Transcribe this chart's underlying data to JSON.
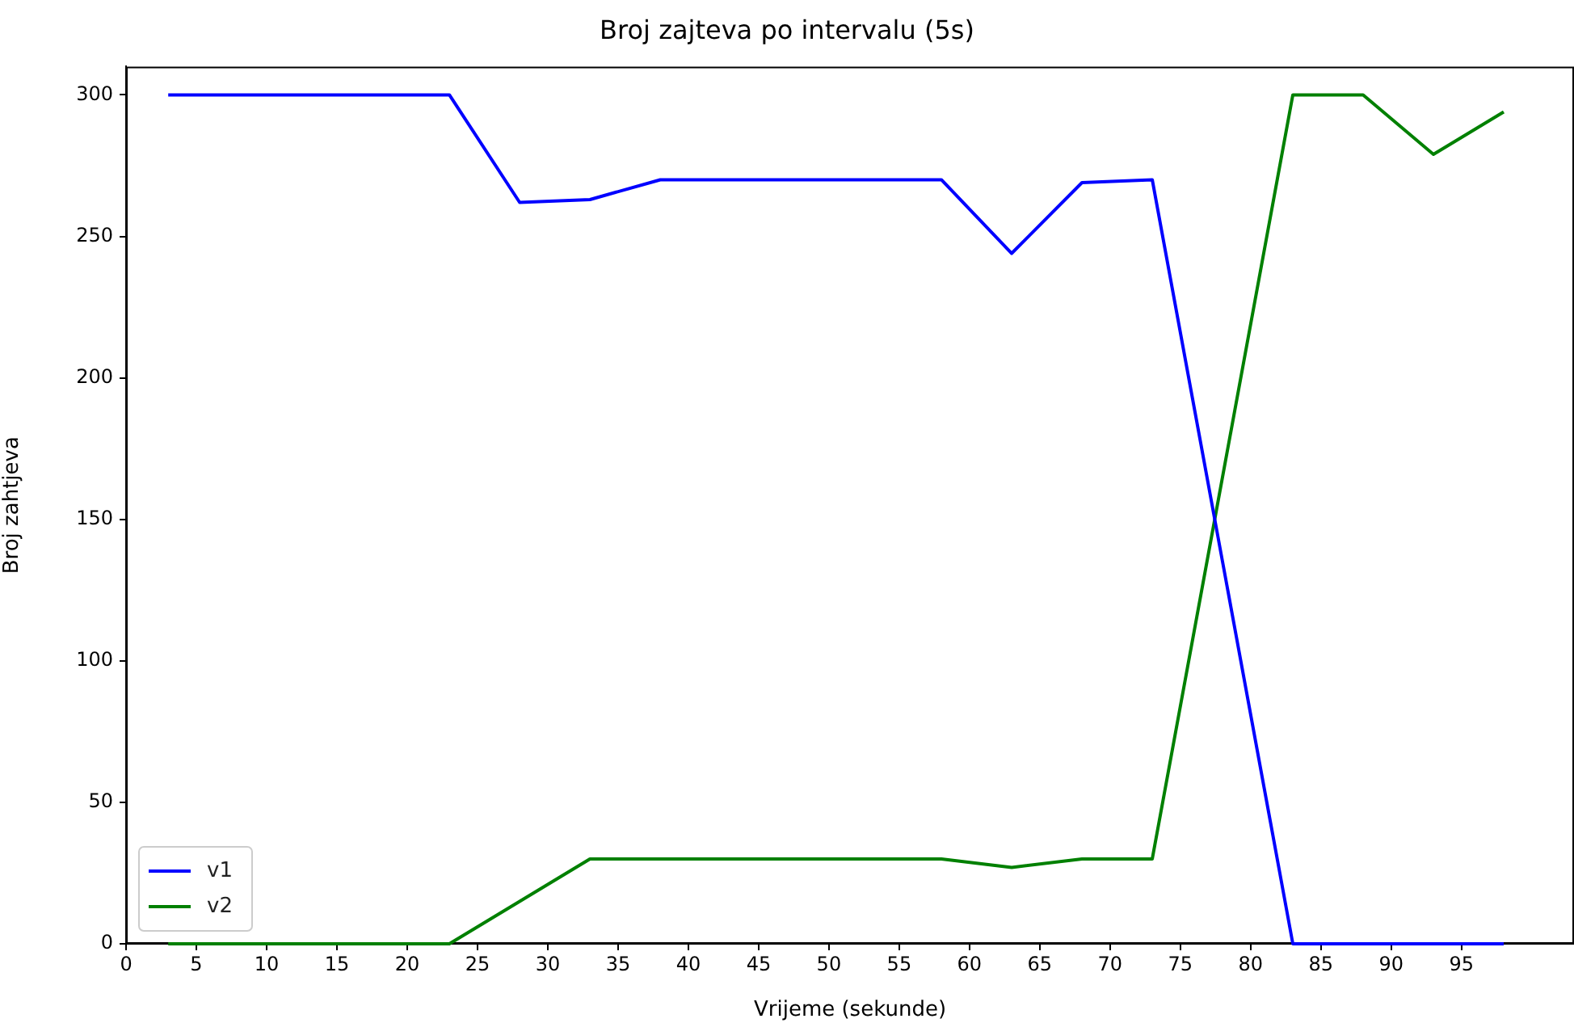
{
  "chart_data": {
    "type": "line",
    "title": "Broj zajteva po intervalu (5s)",
    "xlabel": "Vrijeme (sekunde)",
    "ylabel": "Broj zahtjeva",
    "x": [
      3,
      8,
      13,
      18,
      23,
      28,
      33,
      38,
      43,
      48,
      53,
      58,
      63,
      68,
      73,
      78,
      83,
      88,
      93,
      98
    ],
    "series": [
      {
        "name": "v1",
        "color": "#0000ff",
        "values": [
          300,
          300,
          300,
          300,
          300,
          262,
          263,
          270,
          270,
          270,
          270,
          270,
          244,
          269,
          270,
          135,
          0,
          0,
          0,
          0
        ]
      },
      {
        "name": "v2",
        "color": "#008000",
        "values": [
          0,
          0,
          0,
          0,
          0,
          15,
          30,
          30,
          30,
          30,
          30,
          30,
          27,
          30,
          30,
          165,
          300,
          300,
          279,
          294
        ]
      }
    ],
    "xlim": [
      0,
      103
    ],
    "xticks": [
      0,
      5,
      10,
      15,
      20,
      25,
      30,
      35,
      40,
      45,
      50,
      55,
      60,
      65,
      70,
      75,
      80,
      85,
      90,
      95
    ],
    "ylim": [
      0,
      310
    ],
    "yticks": [
      0,
      50,
      100,
      150,
      200,
      250,
      300
    ],
    "grid": false,
    "legend": "bottom left",
    "marker": "none",
    "line_style": "solid"
  }
}
